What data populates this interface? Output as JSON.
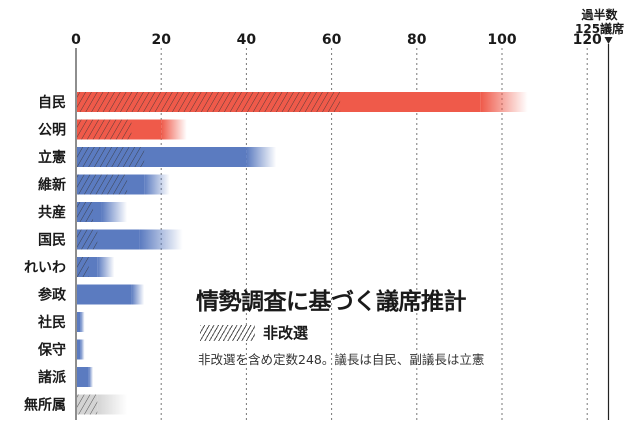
{
  "chart_data": {
    "type": "bar",
    "orientation": "horizontal",
    "title": "情勢調査に基づく議席推計",
    "note": "非改選を含め定数248。議長は自民、副議長は立憲",
    "legend": {
      "hatched_label": "非改選",
      "placement": "bottom-center"
    },
    "reference_line": {
      "value": 125,
      "label_line1": "過半数",
      "label_line2": "125議席"
    },
    "xlim": [
      0,
      125
    ],
    "xticks": [
      "0",
      "20",
      "40",
      "60",
      "80",
      "100",
      "120"
    ],
    "grid": true,
    "categories": [
      "自民",
      "公明",
      "立憲",
      "維新",
      "共産",
      "国民",
      "れいわ",
      "参政",
      "社民",
      "保守",
      "諸派",
      "無所属"
    ],
    "non_up_seats": [
      62,
      13,
      16,
      12,
      4,
      5,
      3,
      0,
      0,
      0,
      0,
      5
    ],
    "estimate_low": [
      95,
      20,
      40,
      16,
      6,
      15,
      5,
      13,
      1,
      1,
      3,
      5
    ],
    "estimate_high": [
      106,
      26,
      47,
      22,
      12,
      25,
      9,
      16,
      2,
      2,
      4,
      12
    ],
    "colors": {
      "ruling": "#ef5a4a",
      "opposition": "#5b7bc0",
      "independent": "#d4d4d4"
    },
    "bar_color_group": [
      "ruling",
      "ruling",
      "opposition",
      "opposition",
      "opposition",
      "opposition",
      "opposition",
      "opposition",
      "opposition",
      "opposition",
      "opposition",
      "independent"
    ]
  }
}
